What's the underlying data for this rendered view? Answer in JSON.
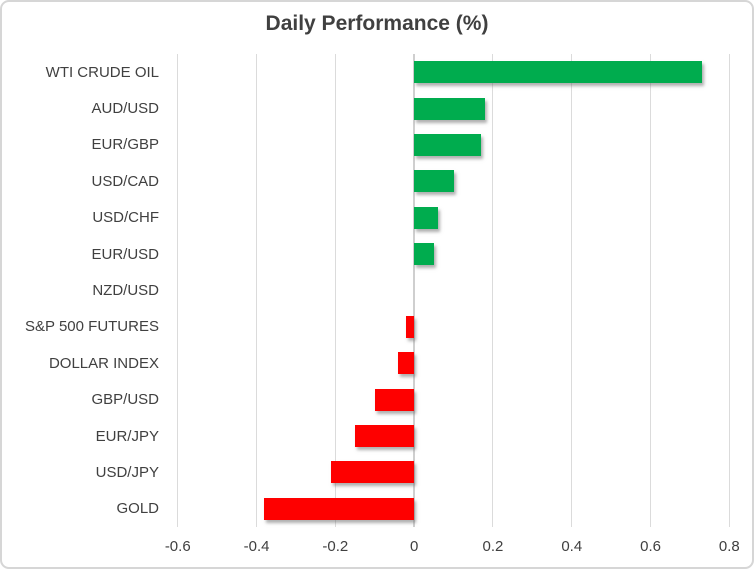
{
  "title": "Daily Performance (%)",
  "chart_data": {
    "type": "bar",
    "orientation": "horizontal",
    "title": "Daily Performance (%)",
    "categories": [
      "WTI CRUDE OIL",
      "AUD/USD",
      "EUR/GBP",
      "USD/CAD",
      "USD/CHF",
      "EUR/USD",
      "NZD/USD",
      "S&P 500 FUTURES",
      "DOLLAR INDEX",
      "GBP/USD",
      "EUR/JPY",
      "USD/JPY",
      "GOLD"
    ],
    "values": [
      0.73,
      0.18,
      0.17,
      0.1,
      0.06,
      0.05,
      0.0,
      -0.02,
      -0.04,
      -0.1,
      -0.15,
      -0.21,
      -0.38
    ],
    "xlabel": "",
    "ylabel": "",
    "xlim": [
      -0.64,
      0.86
    ],
    "x_ticks": [
      -0.6,
      -0.4,
      -0.2,
      0,
      0.2,
      0.4,
      0.6,
      0.8
    ],
    "x_tick_labels": [
      "-0.6",
      "-0.4",
      "-0.2",
      "0",
      "0.2",
      "0.4",
      "0.6",
      "0.8"
    ],
    "grid": "vertical-only",
    "legend": false,
    "colors": {
      "positive": "#00AC4E",
      "negative": "#FE0000",
      "gridline": "#DBDBDB",
      "text": "#404040"
    }
  }
}
